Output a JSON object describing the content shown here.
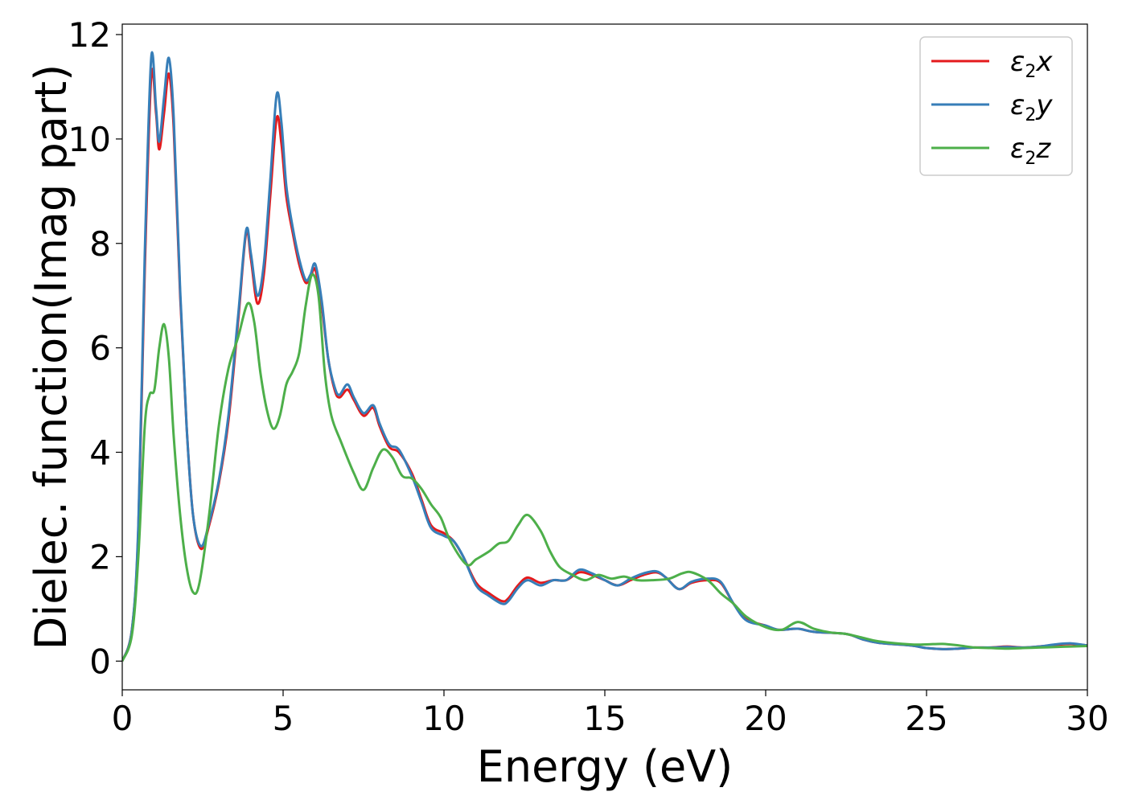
{
  "chart_data": {
    "type": "line",
    "xlabel": "Energy (eV)",
    "ylabel": "Dielec. function(Imag part)",
    "xlim": [
      0,
      30
    ],
    "ylim": [
      -0.55,
      12.2
    ],
    "xticks": [
      0,
      5,
      10,
      15,
      20,
      25,
      30
    ],
    "yticks": [
      0,
      2,
      4,
      6,
      8,
      10,
      12
    ],
    "grid": false,
    "legend_position": "top-right",
    "series": [
      {
        "name": "ε2x",
        "legend_base": "ε",
        "legend_sub": "2",
        "legend_suffix": "x",
        "color": "#e41a1c",
        "points": [
          [
            0,
            0
          ],
          [
            0.3,
            0.6
          ],
          [
            0.5,
            2.5
          ],
          [
            0.7,
            7.5
          ],
          [
            0.9,
            11.2
          ],
          [
            1.05,
            10.5
          ],
          [
            1.15,
            9.8
          ],
          [
            1.3,
            10.5
          ],
          [
            1.45,
            11.25
          ],
          [
            1.6,
            10.2
          ],
          [
            1.8,
            7.0
          ],
          [
            2.0,
            4.5
          ],
          [
            2.2,
            2.8
          ],
          [
            2.45,
            2.15
          ],
          [
            2.7,
            2.6
          ],
          [
            3.0,
            3.4
          ],
          [
            3.3,
            4.6
          ],
          [
            3.6,
            6.5
          ],
          [
            3.85,
            8.2
          ],
          [
            4.0,
            7.7
          ],
          [
            4.2,
            6.85
          ],
          [
            4.4,
            7.4
          ],
          [
            4.6,
            8.9
          ],
          [
            4.8,
            10.4
          ],
          [
            4.95,
            9.9
          ],
          [
            5.1,
            8.9
          ],
          [
            5.3,
            8.2
          ],
          [
            5.5,
            7.6
          ],
          [
            5.7,
            7.25
          ],
          [
            5.85,
            7.35
          ],
          [
            6.0,
            7.5
          ],
          [
            6.2,
            6.8
          ],
          [
            6.4,
            5.8
          ],
          [
            6.6,
            5.2
          ],
          [
            6.75,
            5.05
          ],
          [
            7.0,
            5.2
          ],
          [
            7.2,
            5.0
          ],
          [
            7.5,
            4.7
          ],
          [
            7.8,
            4.85
          ],
          [
            8.0,
            4.5
          ],
          [
            8.3,
            4.1
          ],
          [
            8.6,
            4.0
          ],
          [
            9.0,
            3.6
          ],
          [
            9.3,
            3.1
          ],
          [
            9.6,
            2.6
          ],
          [
            10.0,
            2.45
          ],
          [
            10.3,
            2.3
          ],
          [
            10.6,
            2.0
          ],
          [
            11.0,
            1.5
          ],
          [
            11.4,
            1.3
          ],
          [
            11.8,
            1.15
          ],
          [
            12.0,
            1.2
          ],
          [
            12.3,
            1.45
          ],
          [
            12.6,
            1.6
          ],
          [
            13.0,
            1.5
          ],
          [
            13.4,
            1.55
          ],
          [
            13.8,
            1.55
          ],
          [
            14.2,
            1.7
          ],
          [
            14.6,
            1.65
          ],
          [
            15.0,
            1.55
          ],
          [
            15.4,
            1.45
          ],
          [
            15.8,
            1.55
          ],
          [
            16.2,
            1.65
          ],
          [
            16.6,
            1.7
          ],
          [
            16.9,
            1.6
          ],
          [
            17.3,
            1.38
          ],
          [
            17.7,
            1.5
          ],
          [
            18.2,
            1.55
          ],
          [
            18.6,
            1.5
          ],
          [
            19.0,
            1.1
          ],
          [
            19.4,
            0.8
          ],
          [
            20.0,
            0.68
          ],
          [
            20.4,
            0.6
          ],
          [
            21.0,
            0.62
          ],
          [
            21.5,
            0.56
          ],
          [
            22.5,
            0.52
          ],
          [
            23.0,
            0.42
          ],
          [
            23.5,
            0.35
          ],
          [
            24.5,
            0.3
          ],
          [
            25.0,
            0.25
          ],
          [
            25.5,
            0.23
          ],
          [
            26.0,
            0.24
          ],
          [
            26.5,
            0.26
          ],
          [
            27.0,
            0.26
          ],
          [
            27.5,
            0.28
          ],
          [
            28.0,
            0.26
          ],
          [
            28.5,
            0.28
          ],
          [
            29.0,
            0.31
          ],
          [
            29.5,
            0.33
          ],
          [
            30.0,
            0.3
          ]
        ]
      },
      {
        "name": "ε2y",
        "legend_base": "ε",
        "legend_sub": "2",
        "legend_suffix": "y",
        "color": "#377eb8",
        "points": [
          [
            0,
            0
          ],
          [
            0.3,
            0.6
          ],
          [
            0.5,
            2.6
          ],
          [
            0.7,
            7.8
          ],
          [
            0.9,
            11.55
          ],
          [
            1.05,
            10.6
          ],
          [
            1.15,
            9.95
          ],
          [
            1.3,
            10.8
          ],
          [
            1.45,
            11.55
          ],
          [
            1.6,
            10.4
          ],
          [
            1.8,
            7.1
          ],
          [
            2.0,
            4.5
          ],
          [
            2.2,
            2.8
          ],
          [
            2.45,
            2.2
          ],
          [
            2.7,
            2.65
          ],
          [
            3.0,
            3.45
          ],
          [
            3.3,
            4.7
          ],
          [
            3.6,
            6.6
          ],
          [
            3.85,
            8.25
          ],
          [
            4.0,
            7.8
          ],
          [
            4.2,
            7.0
          ],
          [
            4.4,
            7.6
          ],
          [
            4.6,
            9.2
          ],
          [
            4.8,
            10.85
          ],
          [
            4.95,
            10.3
          ],
          [
            5.1,
            9.1
          ],
          [
            5.3,
            8.3
          ],
          [
            5.5,
            7.7
          ],
          [
            5.7,
            7.3
          ],
          [
            5.85,
            7.4
          ],
          [
            6.0,
            7.6
          ],
          [
            6.2,
            6.9
          ],
          [
            6.4,
            5.8
          ],
          [
            6.6,
            5.25
          ],
          [
            6.75,
            5.1
          ],
          [
            7.0,
            5.3
          ],
          [
            7.2,
            5.05
          ],
          [
            7.5,
            4.75
          ],
          [
            7.8,
            4.9
          ],
          [
            8.0,
            4.55
          ],
          [
            8.3,
            4.15
          ],
          [
            8.6,
            4.05
          ],
          [
            9.0,
            3.55
          ],
          [
            9.3,
            3.05
          ],
          [
            9.6,
            2.55
          ],
          [
            10.0,
            2.4
          ],
          [
            10.3,
            2.3
          ],
          [
            10.6,
            2.0
          ],
          [
            11.0,
            1.45
          ],
          [
            11.4,
            1.25
          ],
          [
            11.8,
            1.1
          ],
          [
            12.0,
            1.15
          ],
          [
            12.3,
            1.4
          ],
          [
            12.6,
            1.55
          ],
          [
            13.0,
            1.45
          ],
          [
            13.4,
            1.55
          ],
          [
            13.8,
            1.55
          ],
          [
            14.2,
            1.75
          ],
          [
            14.6,
            1.68
          ],
          [
            15.0,
            1.55
          ],
          [
            15.4,
            1.45
          ],
          [
            15.8,
            1.58
          ],
          [
            16.2,
            1.68
          ],
          [
            16.6,
            1.72
          ],
          [
            16.9,
            1.6
          ],
          [
            17.3,
            1.38
          ],
          [
            17.7,
            1.52
          ],
          [
            18.2,
            1.58
          ],
          [
            18.6,
            1.52
          ],
          [
            19.0,
            1.1
          ],
          [
            19.4,
            0.78
          ],
          [
            20.0,
            0.68
          ],
          [
            20.4,
            0.6
          ],
          [
            21.0,
            0.62
          ],
          [
            21.5,
            0.56
          ],
          [
            22.5,
            0.52
          ],
          [
            23.0,
            0.42
          ],
          [
            23.5,
            0.35
          ],
          [
            24.5,
            0.3
          ],
          [
            25.0,
            0.25
          ],
          [
            25.5,
            0.23
          ],
          [
            26.0,
            0.24
          ],
          [
            26.5,
            0.26
          ],
          [
            27.0,
            0.26
          ],
          [
            27.5,
            0.27
          ],
          [
            28.0,
            0.26
          ],
          [
            28.5,
            0.28
          ],
          [
            29.0,
            0.32
          ],
          [
            29.5,
            0.34
          ],
          [
            30.0,
            0.3
          ]
        ]
      },
      {
        "name": "ε2z",
        "legend_base": "ε",
        "legend_sub": "2",
        "legend_suffix": "z",
        "color": "#4daf4a",
        "points": [
          [
            0,
            0
          ],
          [
            0.3,
            0.5
          ],
          [
            0.5,
            2.0
          ],
          [
            0.7,
            4.5
          ],
          [
            0.85,
            5.1
          ],
          [
            1.0,
            5.2
          ],
          [
            1.15,
            6.0
          ],
          [
            1.3,
            6.45
          ],
          [
            1.45,
            5.8
          ],
          [
            1.6,
            4.3
          ],
          [
            1.8,
            2.8
          ],
          [
            2.0,
            1.8
          ],
          [
            2.2,
            1.32
          ],
          [
            2.4,
            1.5
          ],
          [
            2.7,
            2.8
          ],
          [
            3.0,
            4.5
          ],
          [
            3.3,
            5.6
          ],
          [
            3.6,
            6.2
          ],
          [
            3.9,
            6.85
          ],
          [
            4.1,
            6.5
          ],
          [
            4.3,
            5.5
          ],
          [
            4.5,
            4.8
          ],
          [
            4.7,
            4.45
          ],
          [
            4.9,
            4.7
          ],
          [
            5.1,
            5.3
          ],
          [
            5.3,
            5.55
          ],
          [
            5.5,
            5.9
          ],
          [
            5.7,
            6.8
          ],
          [
            5.9,
            7.4
          ],
          [
            6.1,
            7.0
          ],
          [
            6.3,
            5.5
          ],
          [
            6.5,
            4.7
          ],
          [
            6.8,
            4.2
          ],
          [
            7.2,
            3.6
          ],
          [
            7.5,
            3.28
          ],
          [
            7.8,
            3.7
          ],
          [
            8.1,
            4.05
          ],
          [
            8.4,
            3.9
          ],
          [
            8.7,
            3.55
          ],
          [
            9.0,
            3.5
          ],
          [
            9.3,
            3.3
          ],
          [
            9.6,
            3.0
          ],
          [
            9.9,
            2.75
          ],
          [
            10.2,
            2.3
          ],
          [
            10.7,
            1.85
          ],
          [
            11.0,
            1.95
          ],
          [
            11.4,
            2.1
          ],
          [
            11.7,
            2.25
          ],
          [
            12.0,
            2.3
          ],
          [
            12.3,
            2.6
          ],
          [
            12.6,
            2.8
          ],
          [
            13.0,
            2.5
          ],
          [
            13.3,
            2.1
          ],
          [
            13.6,
            1.8
          ],
          [
            14.0,
            1.65
          ],
          [
            14.4,
            1.55
          ],
          [
            14.8,
            1.65
          ],
          [
            15.2,
            1.58
          ],
          [
            15.6,
            1.62
          ],
          [
            16.0,
            1.55
          ],
          [
            16.5,
            1.55
          ],
          [
            17.0,
            1.58
          ],
          [
            17.4,
            1.68
          ],
          [
            17.7,
            1.7
          ],
          [
            18.2,
            1.55
          ],
          [
            18.6,
            1.3
          ],
          [
            19.0,
            1.1
          ],
          [
            19.4,
            0.85
          ],
          [
            20.0,
            0.65
          ],
          [
            20.5,
            0.6
          ],
          [
            21.0,
            0.75
          ],
          [
            21.5,
            0.62
          ],
          [
            22.0,
            0.55
          ],
          [
            22.5,
            0.52
          ],
          [
            23.0,
            0.45
          ],
          [
            23.5,
            0.38
          ],
          [
            24.5,
            0.32
          ],
          [
            25.0,
            0.32
          ],
          [
            25.5,
            0.33
          ],
          [
            26.0,
            0.3
          ],
          [
            26.5,
            0.26
          ],
          [
            27.0,
            0.25
          ],
          [
            27.5,
            0.24
          ],
          [
            28.0,
            0.25
          ],
          [
            28.5,
            0.26
          ],
          [
            29.0,
            0.27
          ],
          [
            29.5,
            0.28
          ],
          [
            30.0,
            0.29
          ]
        ]
      }
    ]
  }
}
